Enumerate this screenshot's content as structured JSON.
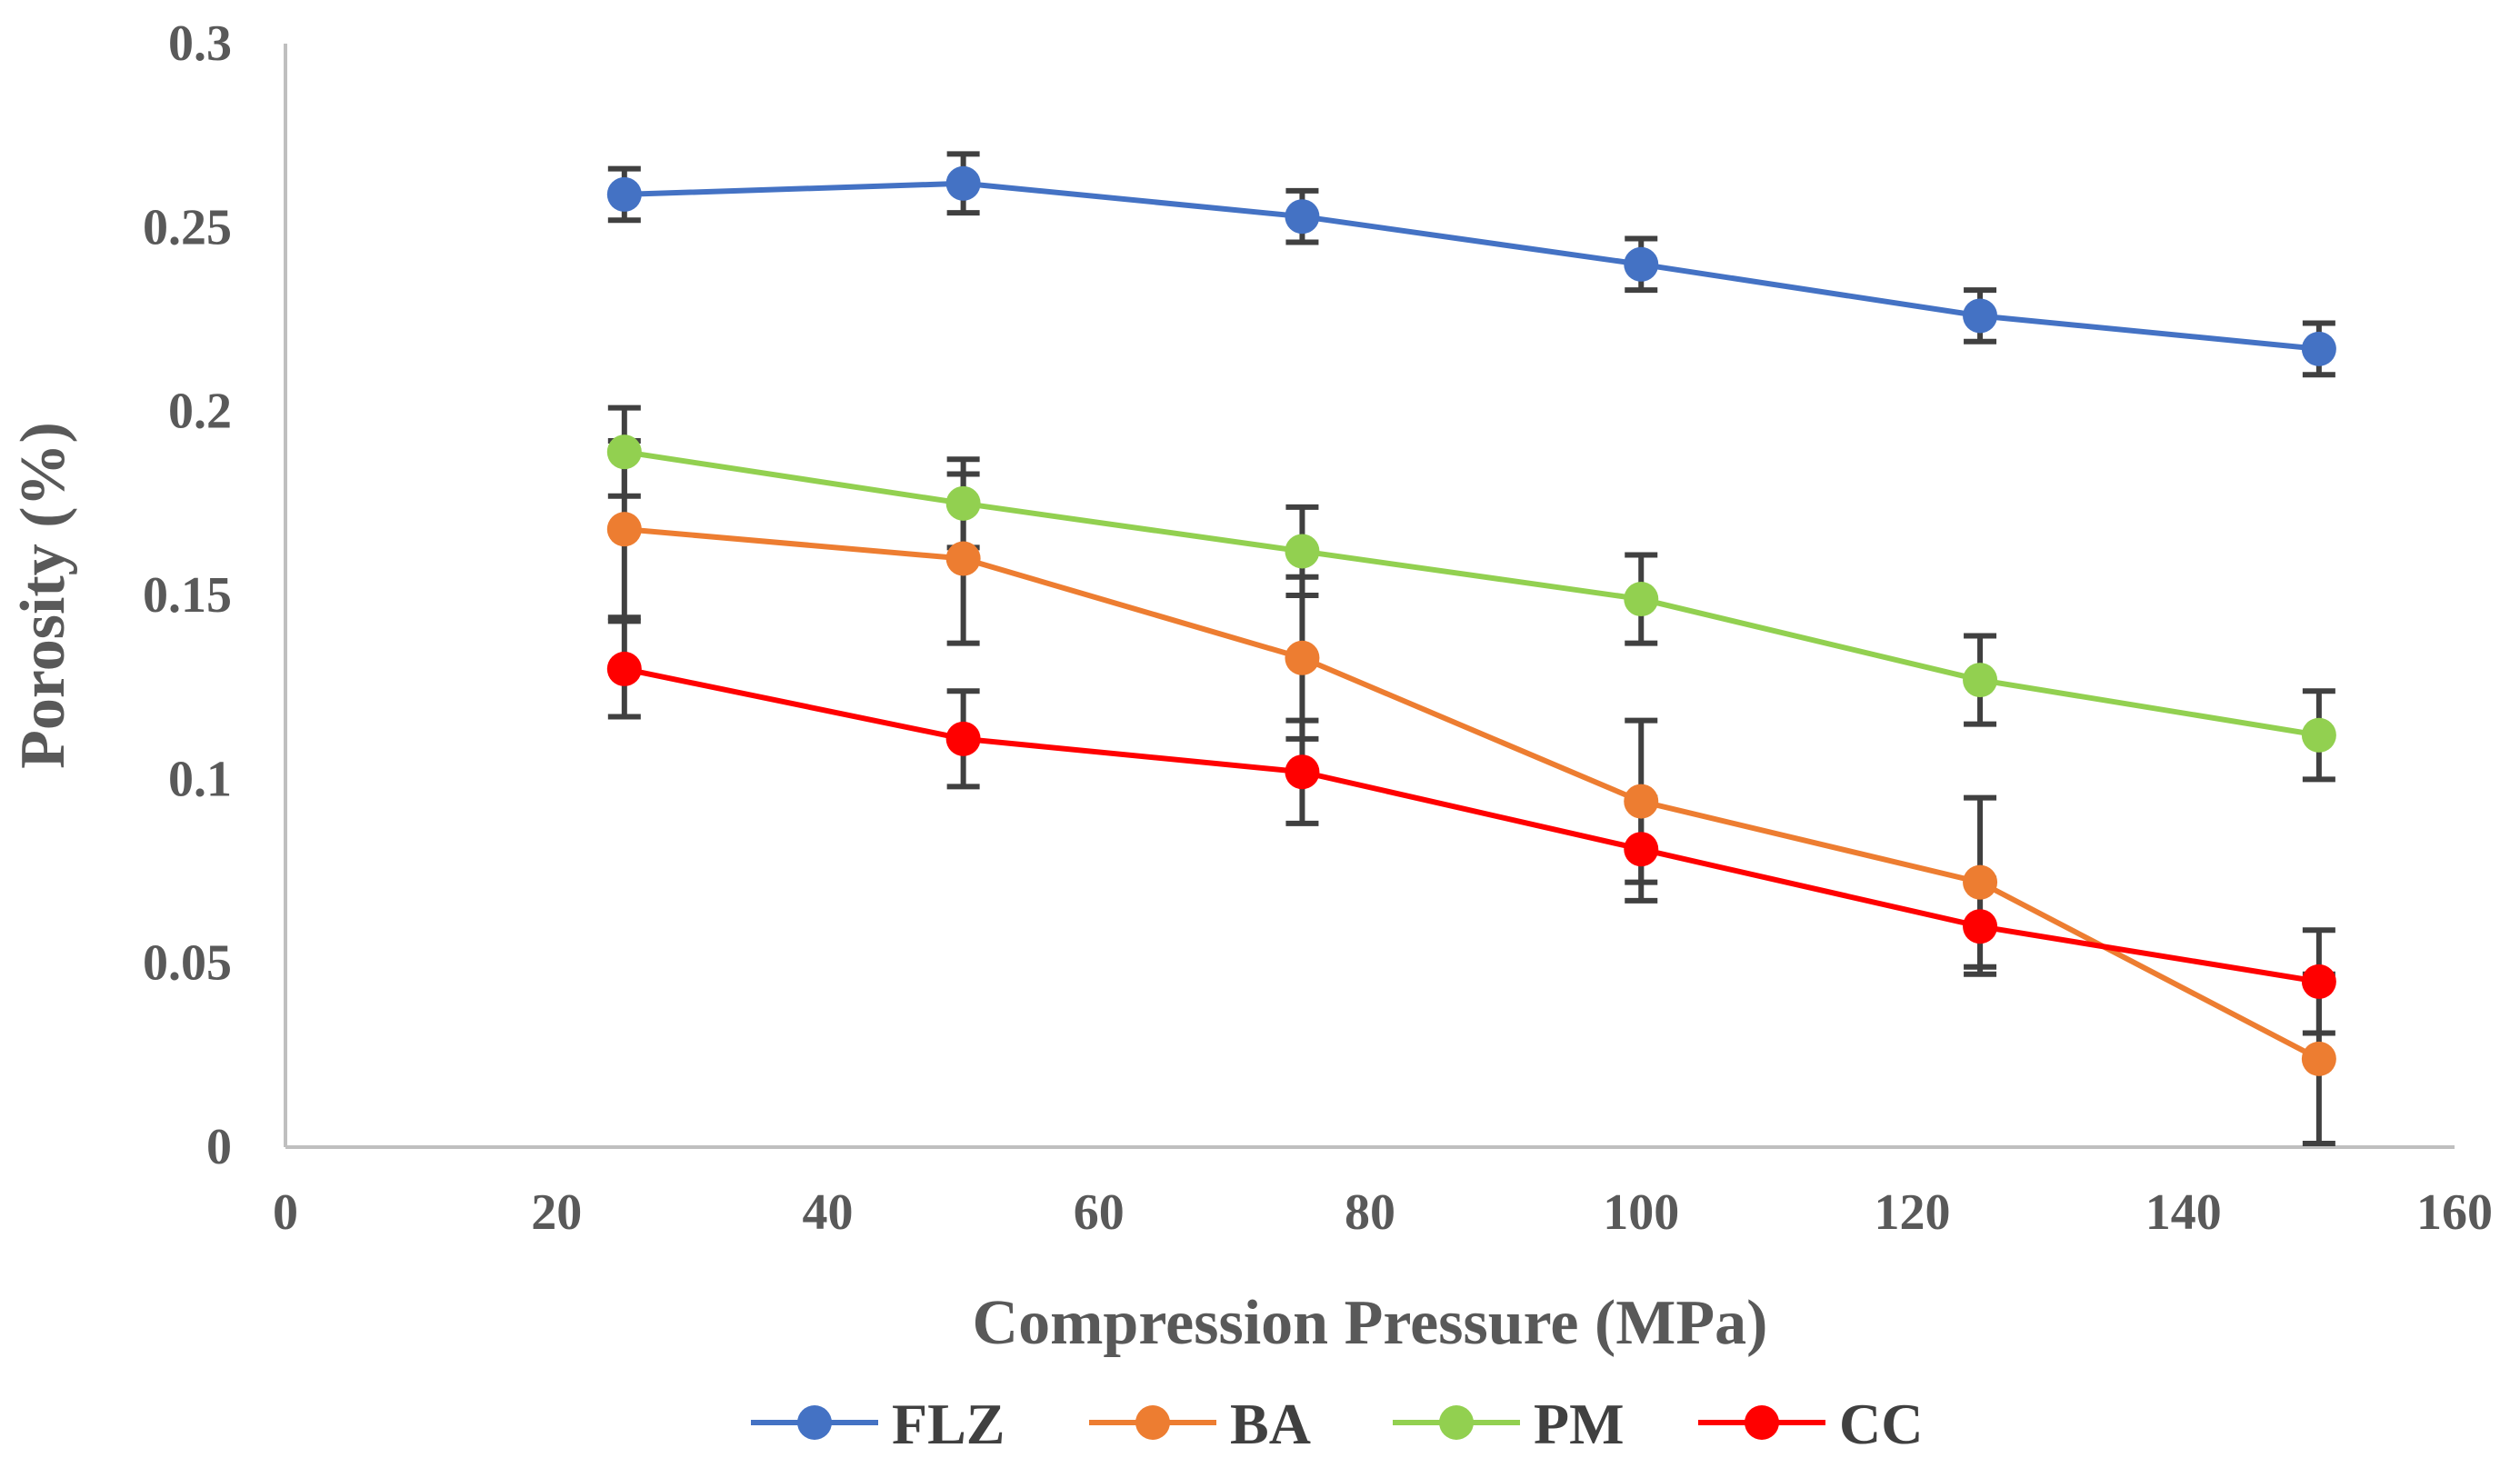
{
  "chart_data": {
    "type": "line",
    "title": "",
    "xlabel": "Compression Pressure (MPa)",
    "ylabel": "Porosity (%)",
    "xlim": [
      0,
      160
    ],
    "ylim": [
      0,
      0.3
    ],
    "x_ticks": [
      "0",
      "20",
      "40",
      "60",
      "80",
      "100",
      "120",
      "140",
      "160"
    ],
    "y_ticks": [
      "0",
      "0.05",
      "0.1",
      "0.15",
      "0.2",
      "0.25",
      "0.3"
    ],
    "grid": false,
    "legend_position": "bottom",
    "x": [
      25,
      50,
      75,
      100,
      125,
      150
    ],
    "series": [
      {
        "name": "FLZ",
        "color": "#4472c4",
        "values": [
          0.259,
          0.262,
          0.253,
          0.24,
          0.226,
          0.217
        ],
        "errors": [
          0.007,
          0.008,
          0.007,
          0.007,
          0.007,
          0.007
        ]
      },
      {
        "name": "BA",
        "color": "#ed7d31",
        "values": [
          0.168,
          0.16,
          0.133,
          0.094,
          0.072,
          0.024
        ],
        "errors": [
          0.024,
          0.023,
          0.022,
          0.022,
          0.023,
          0.023
        ]
      },
      {
        "name": "PM",
        "color": "#92d050",
        "values": [
          0.189,
          0.175,
          0.162,
          0.149,
          0.127,
          0.112
        ],
        "errors": [
          0.012,
          0.012,
          0.012,
          0.012,
          0.012,
          0.012
        ]
      },
      {
        "name": "CC",
        "color": "#ff0000",
        "values": [
          0.13,
          0.111,
          0.102,
          0.081,
          0.06,
          0.045
        ],
        "errors": [
          0.013,
          0.013,
          0.014,
          0.014,
          0.013,
          0.014
        ]
      }
    ]
  }
}
